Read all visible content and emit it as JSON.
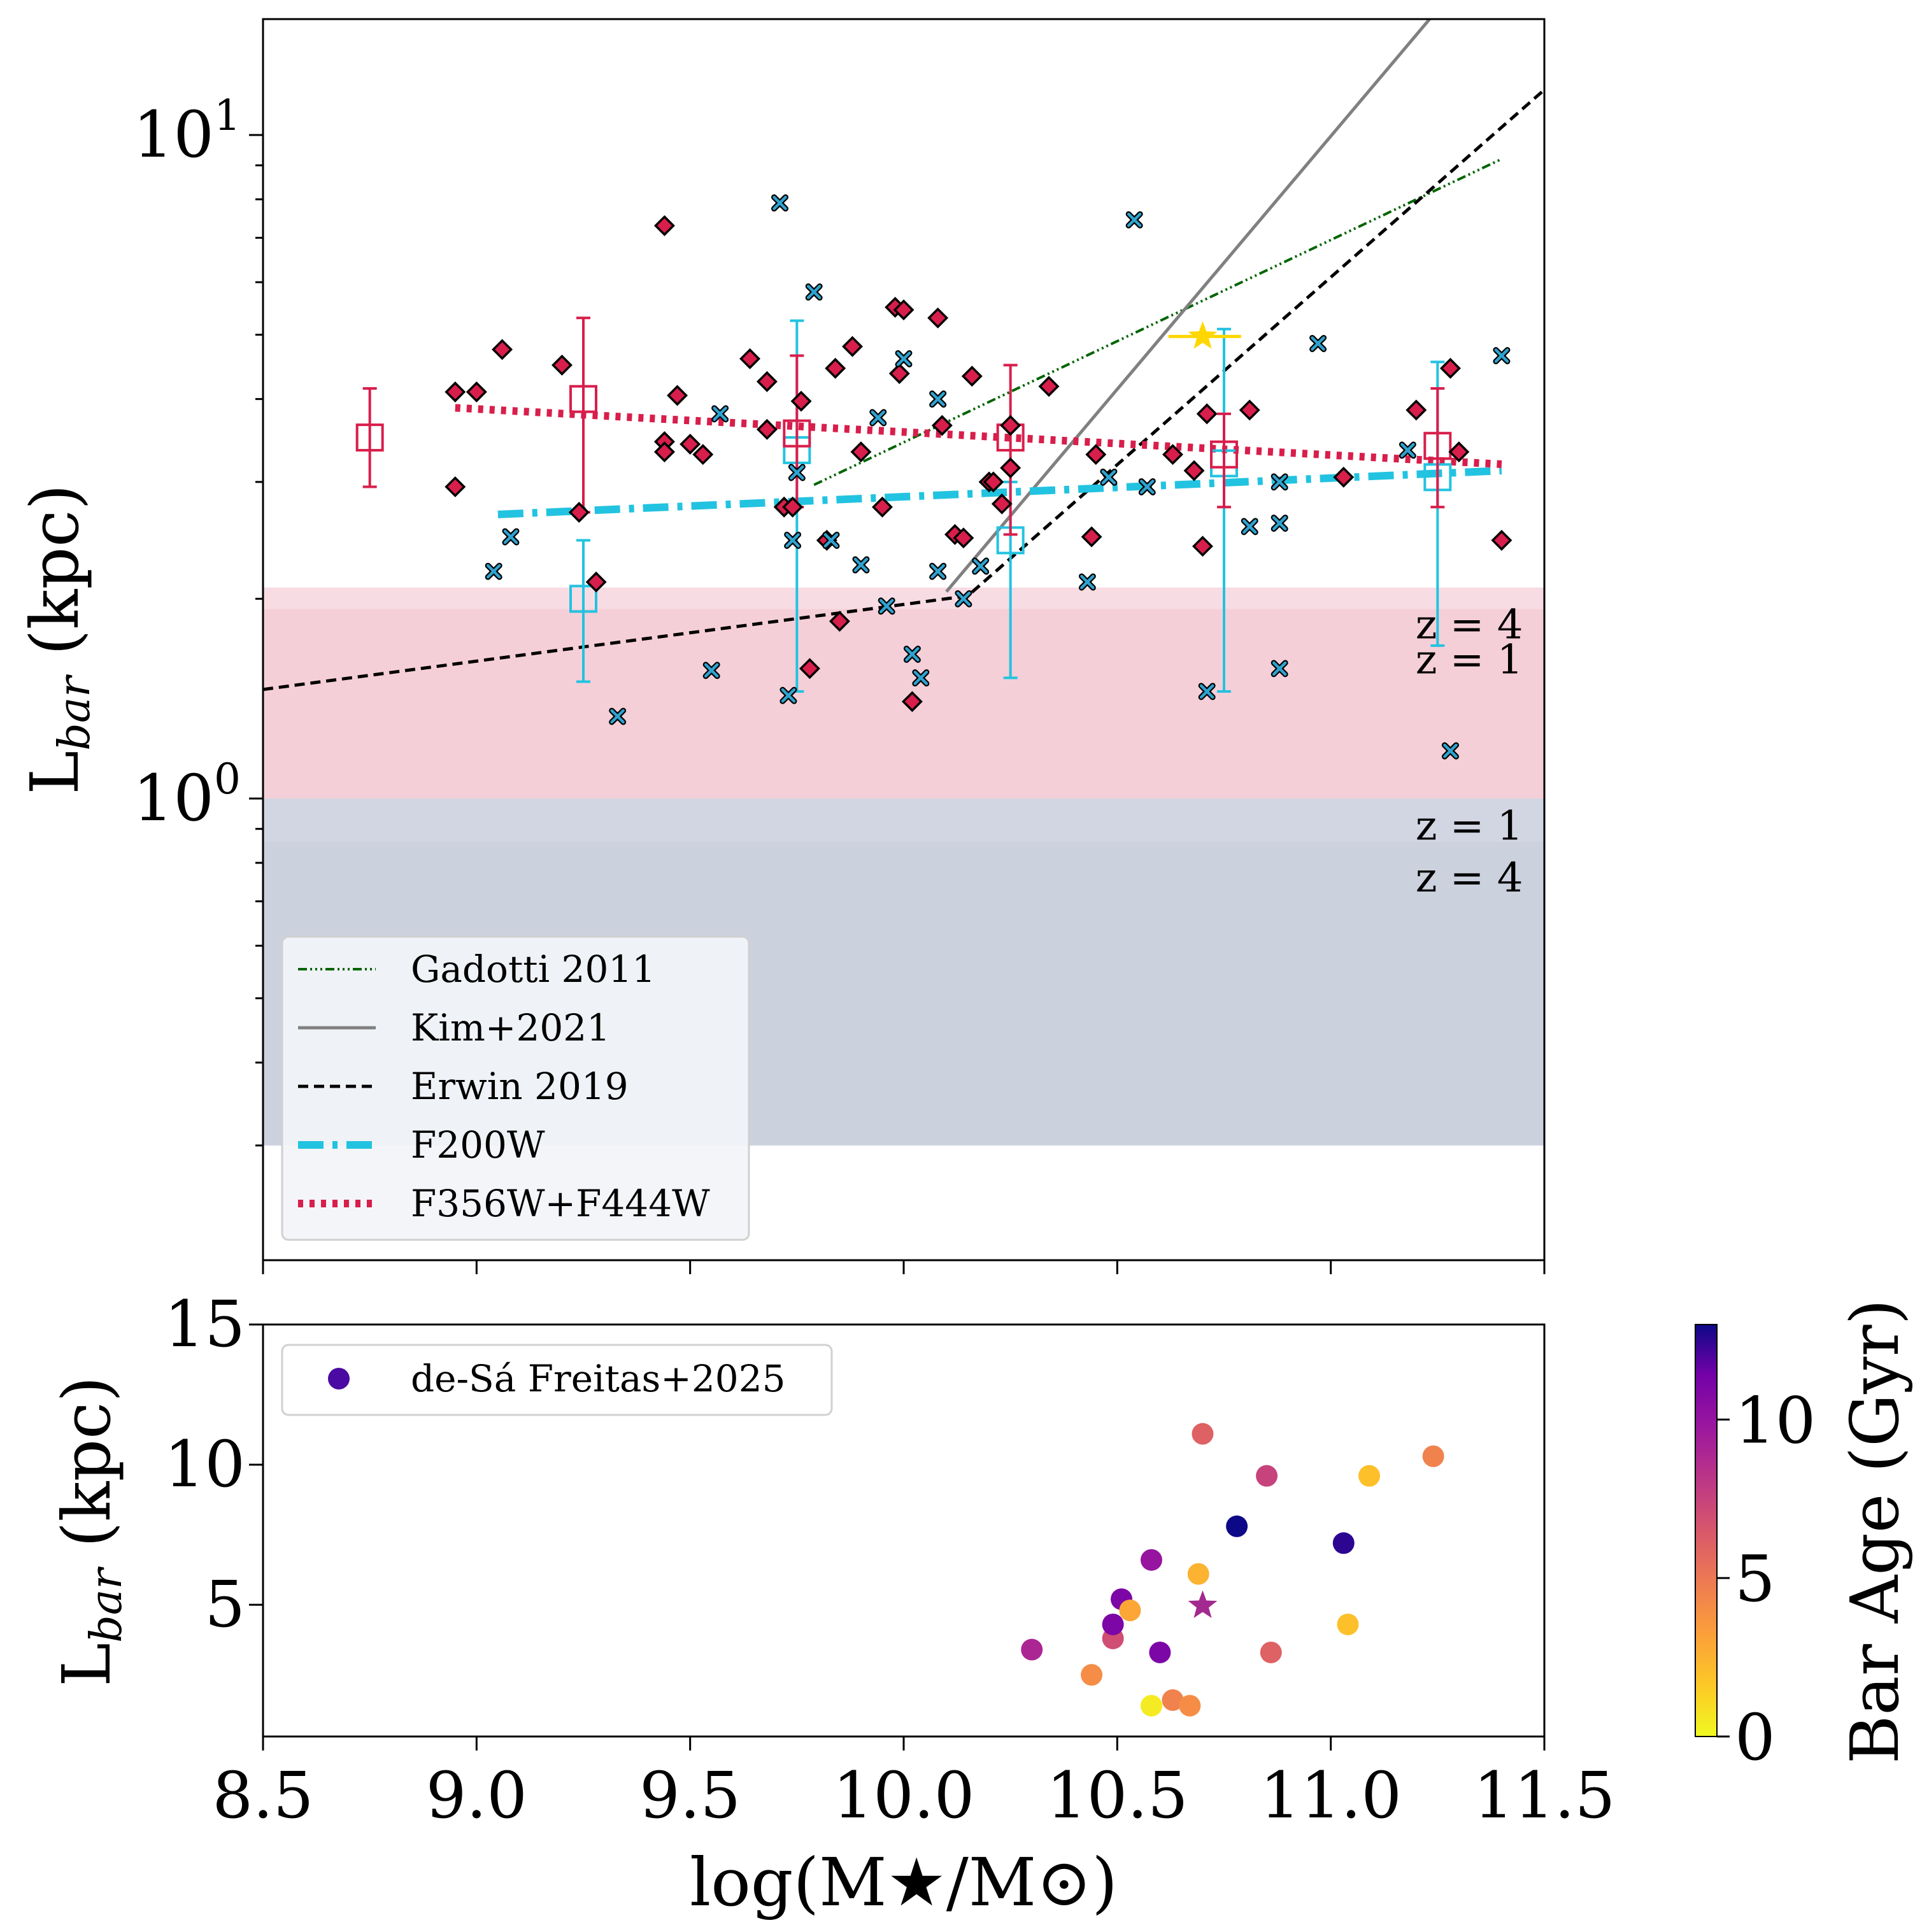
{
  "chart_data": [
    {
      "type": "scatter",
      "yscale": "log",
      "xlim": [
        8.5,
        11.5
      ],
      "ylim": [
        0.3,
        16
      ],
      "ylabel_main": "L",
      "ylabel_sub": "bar",
      "ylabel_unit": " (kpc)",
      "yticks": [
        {
          "value": 10,
          "base": "10",
          "exp": "1"
        },
        {
          "value": 1,
          "base": "10",
          "exp": "0"
        }
      ],
      "bands": [
        {
          "y0": 1.0,
          "y1": 2.08,
          "color": "#f3c5d0",
          "opacity": 0.6
        },
        {
          "y0": 1.0,
          "y1": 1.93,
          "color": "#f3c5d0",
          "opacity": 0.55
        },
        {
          "y0": 0.3,
          "y1": 1.0,
          "color": "#c3c8d8",
          "opacity": 0.75
        },
        {
          "y0": 0.3,
          "y1": 0.86,
          "color": "#c3c8d8",
          "opacity": 0.35
        }
      ],
      "band_labels": [
        {
          "text": "z = 4",
          "x": 11.45,
          "y": 1.83
        },
        {
          "text": "z = 1",
          "x": 11.45,
          "y": 1.62
        },
        {
          "text": "z = 1",
          "x": 11.45,
          "y": 0.91
        },
        {
          "text": "z = 4",
          "x": 11.45,
          "y": 0.76
        }
      ],
      "lines": [
        {
          "name": "Gadotti 2011",
          "color": "#006400",
          "dash": "14 5 3 5 3 5 3 5",
          "width": 4,
          "points": [
            [
              9.79,
              2.97
            ],
            [
              11.4,
              9.2
            ]
          ]
        },
        {
          "name": "Kim+2021",
          "color": "#808080",
          "dash": "",
          "width": 5,
          "points": [
            [
              10.1,
              2.05
            ],
            [
              11.27,
              16
            ]
          ]
        },
        {
          "name": "Erwin 2019",
          "color": "#000000",
          "dash": "16 9",
          "width": 5,
          "points": [
            [
              8.5,
              1.46
            ],
            [
              10.15,
              2.02
            ],
            [
              11.5,
              11.7
            ]
          ]
        },
        {
          "name": "F200W",
          "color": "#22c3e0",
          "dash": "40 14 8 14",
          "width": 12,
          "points": [
            [
              9.05,
              2.68
            ],
            [
              11.4,
              3.12
            ]
          ]
        },
        {
          "name": "F356W+F444W",
          "color": "#d81e4b",
          "dash": "8 10",
          "width": 12,
          "points": [
            [
              8.95,
              3.88
            ],
            [
              11.4,
              3.19
            ]
          ]
        }
      ],
      "binned_f356": {
        "color": "#d81e4b",
        "points": [
          [
            8.75,
            3.5,
            2.95,
            4.15
          ],
          [
            9.25,
            4.0,
            2.7,
            5.3
          ],
          [
            9.75,
            3.55,
            2.75,
            4.65
          ],
          [
            10.25,
            3.5,
            2.5,
            4.5
          ],
          [
            10.75,
            3.3,
            2.75,
            3.8
          ],
          [
            11.25,
            3.4,
            2.75,
            4.15
          ]
        ]
      },
      "binned_f200": {
        "color": "#22c3e0",
        "points": [
          [
            9.25,
            2.0,
            1.5,
            2.45
          ],
          [
            9.75,
            3.35,
            1.45,
            5.25
          ],
          [
            10.25,
            2.45,
            1.52,
            3.0
          ],
          [
            10.75,
            3.2,
            1.45,
            5.1
          ],
          [
            11.25,
            3.05,
            1.7,
            4.55
          ]
        ]
      },
      "points_f356": {
        "color": "#d81e4b",
        "points": [
          [
            8.95,
            4.1
          ],
          [
            8.95,
            2.95
          ],
          [
            9.0,
            4.1
          ],
          [
            9.06,
            4.75
          ],
          [
            9.2,
            4.5
          ],
          [
            9.24,
            2.7
          ],
          [
            9.28,
            2.12
          ],
          [
            9.44,
            7.3
          ],
          [
            9.44,
            3.45
          ],
          [
            9.44,
            3.33
          ],
          [
            9.47,
            4.05
          ],
          [
            9.5,
            3.42
          ],
          [
            9.53,
            3.3
          ],
          [
            9.64,
            4.6
          ],
          [
            9.68,
            4.25
          ],
          [
            9.68,
            3.6
          ],
          [
            9.72,
            2.75
          ],
          [
            9.74,
            2.75
          ],
          [
            9.76,
            3.97
          ],
          [
            9.78,
            1.57
          ],
          [
            9.82,
            2.45
          ],
          [
            9.84,
            4.45
          ],
          [
            9.85,
            1.85
          ],
          [
            9.88,
            4.8
          ],
          [
            9.9,
            3.33
          ],
          [
            9.95,
            2.75
          ],
          [
            9.98,
            5.5
          ],
          [
            9.99,
            4.37
          ],
          [
            10.0,
            5.45
          ],
          [
            10.02,
            1.4
          ],
          [
            10.08,
            5.3
          ],
          [
            10.09,
            3.65
          ],
          [
            10.12,
            2.5
          ],
          [
            10.14,
            2.47
          ],
          [
            10.16,
            4.33
          ],
          [
            10.2,
            3.0
          ],
          [
            10.21,
            3.0
          ],
          [
            10.23,
            2.78
          ],
          [
            10.25,
            3.65
          ],
          [
            10.25,
            3.15
          ],
          [
            10.34,
            4.18
          ],
          [
            10.44,
            2.48
          ],
          [
            10.45,
            3.3
          ],
          [
            10.63,
            3.3
          ],
          [
            10.68,
            3.12
          ],
          [
            10.7,
            2.4
          ],
          [
            10.71,
            3.8
          ],
          [
            10.81,
            3.85
          ],
          [
            11.03,
            3.05
          ],
          [
            11.2,
            3.85
          ],
          [
            11.28,
            4.45
          ],
          [
            11.3,
            3.33
          ],
          [
            11.4,
            2.45
          ]
        ]
      },
      "points_f200": {
        "color": "#2fa3d0",
        "points": [
          [
            9.04,
            2.2
          ],
          [
            9.08,
            2.48
          ],
          [
            9.33,
            1.33
          ],
          [
            9.55,
            1.56
          ],
          [
            9.57,
            3.8
          ],
          [
            9.71,
            7.9
          ],
          [
            9.73,
            1.43
          ],
          [
            9.74,
            2.45
          ],
          [
            9.75,
            3.1
          ],
          [
            9.79,
            5.8
          ],
          [
            9.83,
            2.45
          ],
          [
            9.9,
            2.25
          ],
          [
            9.94,
            3.75
          ],
          [
            9.96,
            1.95
          ],
          [
            10.0,
            4.6
          ],
          [
            10.02,
            1.65
          ],
          [
            10.04,
            1.52
          ],
          [
            10.08,
            2.2
          ],
          [
            10.08,
            4.0
          ],
          [
            10.14,
            2.0
          ],
          [
            10.18,
            2.24
          ],
          [
            10.43,
            2.12
          ],
          [
            10.48,
            3.05
          ],
          [
            10.54,
            7.45
          ],
          [
            10.57,
            2.95
          ],
          [
            10.71,
            1.45
          ],
          [
            10.81,
            2.57
          ],
          [
            10.88,
            3.0
          ],
          [
            10.88,
            2.6
          ],
          [
            10.88,
            1.57
          ],
          [
            10.97,
            4.85
          ],
          [
            11.18,
            3.35
          ],
          [
            11.28,
            1.18
          ],
          [
            11.4,
            4.65
          ]
        ]
      },
      "star": {
        "x": 10.7,
        "y": 4.97,
        "xerr": [
          10.62,
          10.79
        ],
        "color": "#ffd700"
      },
      "legend": [
        {
          "label": "Gadotti 2011",
          "style": "gadotti"
        },
        {
          "label": "Kim+2021",
          "style": "kim"
        },
        {
          "label": "Erwin 2019",
          "style": "erwin"
        },
        {
          "label": "F200W",
          "style": "f200"
        },
        {
          "label": "F356W+F444W",
          "style": "f356"
        }
      ]
    },
    {
      "type": "scatter",
      "xlim": [
        8.5,
        11.5
      ],
      "ylim": [
        0.3,
        15
      ],
      "xlabel": "log(M★/M⊙)",
      "ylabel_main": "L",
      "ylabel_sub": "bar",
      "ylabel_unit": " (kpc)",
      "xticks": [
        "8.5",
        "9.0",
        "9.5",
        "10.0",
        "10.5",
        "11.0",
        "11.5"
      ],
      "yticks": [
        "5",
        "10",
        "15"
      ],
      "legend": [
        {
          "label": "de-Sá Freitas+2025",
          "color": "#4b0aa1"
        }
      ],
      "colorbar": {
        "label": "Bar Age (Gyr)",
        "min": 0,
        "max": 13,
        "ticks": [
          "0",
          "5",
          "10"
        ]
      },
      "points": [
        [
          10.3,
          3.4,
          9
        ],
        [
          10.44,
          2.5,
          4
        ],
        [
          10.49,
          3.8,
          7
        ],
        [
          10.49,
          4.3,
          11
        ],
        [
          10.51,
          5.2,
          11
        ],
        [
          10.53,
          4.8,
          3
        ],
        [
          10.58,
          6.6,
          10
        ],
        [
          10.58,
          1.4,
          0.5
        ],
        [
          10.6,
          3.3,
          11
        ],
        [
          10.63,
          1.6,
          4.5
        ],
        [
          10.67,
          1.4,
          4
        ],
        [
          10.69,
          6.1,
          2.5
        ],
        [
          10.7,
          11.1,
          6
        ],
        [
          10.78,
          7.8,
          13
        ],
        [
          10.85,
          9.6,
          7.5
        ],
        [
          10.86,
          3.3,
          6
        ],
        [
          11.03,
          7.2,
          12.5
        ],
        [
          11.04,
          4.3,
          2
        ],
        [
          11.09,
          9.6,
          2
        ],
        [
          11.24,
          10.3,
          4.5
        ]
      ],
      "star": {
        "x": 10.7,
        "y": 4.97,
        "color": "#a3288f"
      }
    }
  ]
}
